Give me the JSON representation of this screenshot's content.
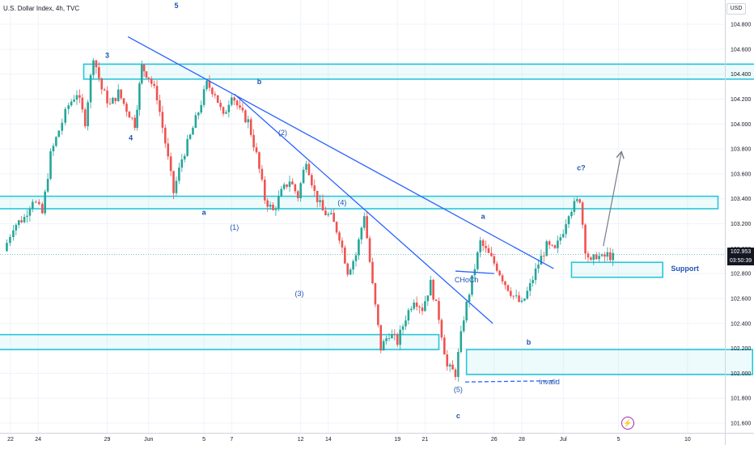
{
  "header": {
    "title": "U.S. Dollar Index, 4h, TVC"
  },
  "unit_label": "USD",
  "current_price": {
    "value": "102.953",
    "countdown": "03:50:39"
  },
  "logo_icon": "tradingview-bolt-icon",
  "colors": {
    "up": "#26a69a",
    "down": "#ef5350",
    "zone": "#26c6da",
    "trendline": "#2962ff",
    "label": "#2153b4",
    "projection": "#787b86"
  },
  "chart_data": {
    "type": "candlestick",
    "title": "U.S. Dollar Index, 4h, TVC",
    "ylim": [
      101.53,
      104.97
    ],
    "yticks": [
      "101.600",
      "101.800",
      "102.000",
      "102.200",
      "102.400",
      "102.600",
      "102.800",
      "103.000",
      "103.200",
      "103.400",
      "103.600",
      "103.800",
      "104.000",
      "104.200",
      "104.400",
      "104.600",
      "104.800"
    ],
    "xticks": [
      {
        "label": "22",
        "day": 22
      },
      {
        "label": "24",
        "day": 24
      },
      {
        "label": "29",
        "day": 29
      },
      {
        "label": "Jun",
        "day": 32
      },
      {
        "label": "5",
        "day": 36
      },
      {
        "label": "7",
        "day": 38
      },
      {
        "label": "12",
        "day": 43
      },
      {
        "label": "14",
        "day": 45
      },
      {
        "label": "19",
        "day": 50
      },
      {
        "label": "21",
        "day": 52
      },
      {
        "label": "26",
        "day": 57
      },
      {
        "label": "28",
        "day": 59
      },
      {
        "label": "Jul",
        "day": 62
      },
      {
        "label": "5",
        "day": 66
      },
      {
        "label": "10",
        "day": 71
      }
    ],
    "closes_path": [
      [
        21.5,
        102.98
      ],
      [
        22.2,
        103.18
      ],
      [
        23.0,
        103.25
      ],
      [
        23.6,
        103.4
      ],
      [
        24.3,
        103.28
      ],
      [
        24.9,
        103.75
      ],
      [
        25.5,
        103.95
      ],
      [
        26.2,
        104.15
      ],
      [
        26.8,
        104.25
      ],
      [
        27.4,
        104.02
      ],
      [
        28.0,
        104.55
      ],
      [
        28.6,
        104.28
      ],
      [
        29.2,
        104.15
      ],
      [
        29.8,
        104.25
      ],
      [
        30.4,
        104.12
      ],
      [
        31.0,
        104.0
      ],
      [
        31.5,
        104.46
      ],
      [
        32.0,
        104.38
      ],
      [
        32.6,
        104.22
      ],
      [
        33.2,
        103.85
      ],
      [
        33.8,
        103.45
      ],
      [
        34.4,
        103.72
      ],
      [
        35.0,
        103.9
      ],
      [
        35.6,
        104.1
      ],
      [
        36.2,
        104.32
      ],
      [
        36.8,
        104.25
      ],
      [
        37.4,
        104.05
      ],
      [
        38.0,
        104.25
      ],
      [
        38.6,
        104.1
      ],
      [
        39.2,
        104.02
      ],
      [
        39.8,
        103.75
      ],
      [
        40.4,
        103.4
      ],
      [
        41.0,
        103.3
      ],
      [
        41.6,
        103.45
      ],
      [
        42.2,
        103.55
      ],
      [
        42.8,
        103.42
      ],
      [
        43.4,
        103.72
      ],
      [
        44.0,
        103.45
      ],
      [
        44.6,
        103.3
      ],
      [
        45.2,
        103.25
      ],
      [
        45.8,
        103.1
      ],
      [
        46.4,
        102.82
      ],
      [
        47.0,
        102.95
      ],
      [
        47.6,
        103.28
      ],
      [
        48.2,
        102.7
      ],
      [
        48.8,
        102.2
      ],
      [
        49.4,
        102.32
      ],
      [
        50.0,
        102.25
      ],
      [
        50.6,
        102.45
      ],
      [
        51.2,
        102.6
      ],
      [
        51.8,
        102.52
      ],
      [
        52.4,
        102.72
      ],
      [
        53.0,
        102.45
      ],
      [
        53.6,
        102.05
      ],
      [
        54.2,
        102.0
      ],
      [
        54.8,
        102.45
      ],
      [
        55.4,
        102.75
      ],
      [
        56.0,
        103.05
      ],
      [
        56.6,
        102.95
      ],
      [
        57.2,
        102.85
      ],
      [
        57.8,
        102.72
      ],
      [
        58.4,
        102.62
      ],
      [
        59.0,
        102.55
      ],
      [
        59.6,
        102.7
      ],
      [
        60.2,
        102.88
      ],
      [
        60.8,
        103.02
      ],
      [
        61.4,
        102.98
      ],
      [
        62.0,
        103.15
      ],
      [
        62.4,
        103.3
      ],
      [
        62.8,
        103.35
      ],
      [
        63.2,
        103.4
      ],
      [
        63.6,
        103.0
      ],
      [
        64.0,
        102.88
      ],
      [
        64.4,
        102.95
      ],
      [
        64.8,
        102.92
      ],
      [
        65.2,
        102.95
      ],
      [
        65.6,
        102.93
      ]
    ],
    "closes_note": "visual reconstruction; candles are generated along these checkpoints",
    "zones": [
      {
        "name": "resistance-zone-top",
        "day_from": 27.3,
        "day_to": 77.5,
        "low": 104.36,
        "high": 104.48
      },
      {
        "name": "zone-a",
        "day_from": 19.5,
        "day_to": 73.2,
        "low": 103.32,
        "high": 103.42
      },
      {
        "name": "zone-left-low",
        "day_from": 15,
        "day_to": 53.0,
        "low": 102.19,
        "high": 102.31
      },
      {
        "name": "zone-right-low",
        "day_from": 55.0,
        "day_to": 75.7,
        "low": 101.99,
        "high": 102.19
      },
      {
        "name": "support-zone",
        "day_from": 62.6,
        "day_to": 69.2,
        "low": 102.77,
        "high": 102.89
      }
    ],
    "trendlines": [
      {
        "name": "long-trendline",
        "from": [
          30.5,
          104.7
        ],
        "to": [
          61.3,
          102.84
        ]
      },
      {
        "name": "inner-trendline",
        "from": [
          38.2,
          104.24
        ],
        "to": [
          56.9,
          102.4
        ]
      },
      {
        "name": "choch-line",
        "from": [
          54.2,
          102.82
        ],
        "to": [
          57.0,
          102.8
        ]
      },
      {
        "name": "invalid-line",
        "from": [
          54.9,
          101.93
        ],
        "to": [
          61.5,
          101.94
        ],
        "dashed": true
      },
      {
        "name": "projection-arrow",
        "from": [
          64.9,
          103.02
        ],
        "to": [
          66.2,
          103.77
        ]
      }
    ],
    "labels": [
      {
        "text": "5",
        "day": 34,
        "price": 104.93
      },
      {
        "text": "3",
        "day": 29,
        "price": 104.53
      },
      {
        "text": "b",
        "day": 40,
        "price": 104.32
      },
      {
        "text": "4",
        "day": 30.7,
        "price": 103.87
      },
      {
        "text": "a",
        "day": 36,
        "price": 103.27
      },
      {
        "text": "(2)",
        "day": 41.7,
        "price": 103.91
      },
      {
        "text": "(4)",
        "day": 46,
        "price": 103.35
      },
      {
        "text": "(1)",
        "day": 38.2,
        "price": 103.15
      },
      {
        "text": "(3)",
        "day": 42.9,
        "price": 102.62
      },
      {
        "text": "a",
        "day": 56.2,
        "price": 103.24
      },
      {
        "text": "CHoCh",
        "day": 55.0,
        "price": 102.73
      },
      {
        "text": "c?",
        "day": 63.3,
        "price": 103.63
      },
      {
        "text": "Support",
        "day": 69.8,
        "price": 102.82
      },
      {
        "text": "b",
        "day": 59.5,
        "price": 102.23
      },
      {
        "text": "(5)",
        "day": 54.4,
        "price": 101.85
      },
      {
        "text": "invalid",
        "day": 61.0,
        "price": 101.91
      },
      {
        "text": "c",
        "day": 54.4,
        "price": 101.64
      }
    ]
  }
}
